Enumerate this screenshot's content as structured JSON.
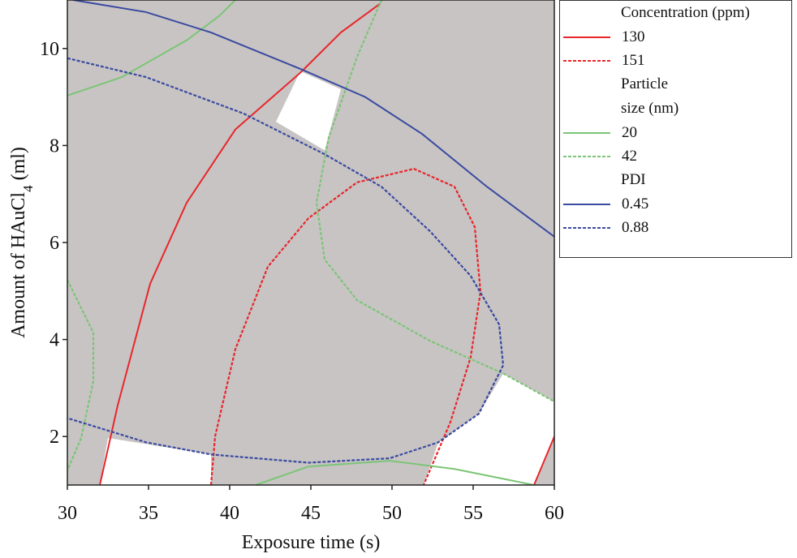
{
  "chart_data": {
    "type": "contour",
    "x_label": "Exposure time (s)",
    "y_label": [
      {
        "text": "Amount of HAuCl"
      },
      {
        "text": "4",
        "sub": true
      },
      {
        "text": " (ml)"
      }
    ],
    "xlim": [
      30,
      60
    ],
    "ylim": [
      1,
      11
    ],
    "xticks": [
      30,
      35,
      40,
      45,
      50,
      55,
      60
    ],
    "yticks": [
      2,
      4,
      6,
      8,
      10
    ],
    "background": "#c8c4c4",
    "legend_groups": [
      "Concentration (ppm)",
      "Particle\nsize (nm)",
      "PDI"
    ],
    "regions": [
      {
        "color": "#ffffff",
        "x": [
          42.85,
          44.35,
          46.85,
          45.85
        ],
        "y": [
          8.49,
          9.53,
          9.16,
          7.9
        ]
      },
      {
        "color": "#ffffff",
        "x": [
          32.5,
          38.85,
          38.85,
          32
        ],
        "y": [
          1.97,
          1.63,
          1.0,
          1.0
        ]
      },
      {
        "color": "#ffffff",
        "x": [
          55.35,
          56.85,
          60,
          60,
          58.75,
          51.95,
          52.85
        ],
        "y": [
          2.47,
          3.3,
          2.72,
          2.0,
          1.0,
          1.0,
          1.88
        ]
      }
    ],
    "series": [
      {
        "name": "130",
        "group": 0,
        "color": "#e8262a",
        "dash": false,
        "x": [
          32,
          33.1,
          35.1,
          37.35,
          40.35,
          44.35,
          46.85,
          49.25,
          null,
          58.75,
          60
        ],
        "y": [
          1.0,
          2.64,
          5.15,
          6.82,
          8.33,
          9.5,
          10.33,
          10.92,
          null,
          1.0,
          2.0
        ]
      },
      {
        "name": "151",
        "group": 0,
        "color": "#e8262a",
        "dash": true,
        "x": [
          38.85,
          39.1,
          40.35,
          42.35,
          44.85,
          47.85,
          51.35,
          53.85,
          55.1,
          55.45,
          54.85,
          53.6,
          51.95
        ],
        "y": [
          1.0,
          2.0,
          3.8,
          5.5,
          6.5,
          7.24,
          7.52,
          7.15,
          6.32,
          4.98,
          3.64,
          2.3,
          1.0
        ]
      },
      {
        "name": "20",
        "group": 1,
        "color": "#7cc576",
        "dash": false,
        "x": [
          30,
          33.35,
          37.35,
          39.35,
          40.35,
          null,
          41.6,
          44.85,
          49.85,
          53.85,
          58.75
        ],
        "y": [
          9.03,
          9.41,
          10.17,
          10.67,
          11.0,
          null,
          1.0,
          1.38,
          1.5,
          1.33,
          1.0
        ]
      },
      {
        "name": "42",
        "group": 1,
        "color": "#7cc576",
        "dash": true,
        "x": [
          30,
          31.6,
          31.6,
          30.85,
          30,
          null,
          49.35,
          47.85,
          46.1,
          45.35,
          45.85,
          47.85,
          52.35,
          56.85,
          60
        ],
        "y": [
          5.23,
          4.14,
          3.14,
          1.97,
          1.3,
          null,
          11.0,
          9.83,
          8.16,
          6.82,
          5.65,
          4.81,
          3.97,
          3.3,
          2.72
        ]
      },
      {
        "name": "0.45",
        "group": 2,
        "color": "#3a4aa0",
        "dash": false,
        "x": [
          30.35,
          34.85,
          38.85,
          44.35,
          48.35,
          51.85,
          55.85,
          60
        ],
        "y": [
          11.0,
          10.75,
          10.33,
          9.58,
          9.0,
          8.24,
          7.15,
          6.12
        ]
      },
      {
        "name": "0.88",
        "group": 2,
        "color": "#3a4aa0",
        "dash": true,
        "x": [
          30,
          34.85,
          40.85,
          45.85,
          49.35,
          52.35,
          54.85,
          56.6,
          56.85,
          55.35,
          52.85,
          49.85,
          44.85,
          38.85,
          34.85,
          30
        ],
        "y": [
          9.8,
          9.41,
          8.66,
          7.82,
          7.15,
          6.23,
          5.31,
          4.31,
          3.47,
          2.47,
          1.88,
          1.55,
          1.46,
          1.63,
          1.88,
          2.38
        ]
      }
    ]
  }
}
